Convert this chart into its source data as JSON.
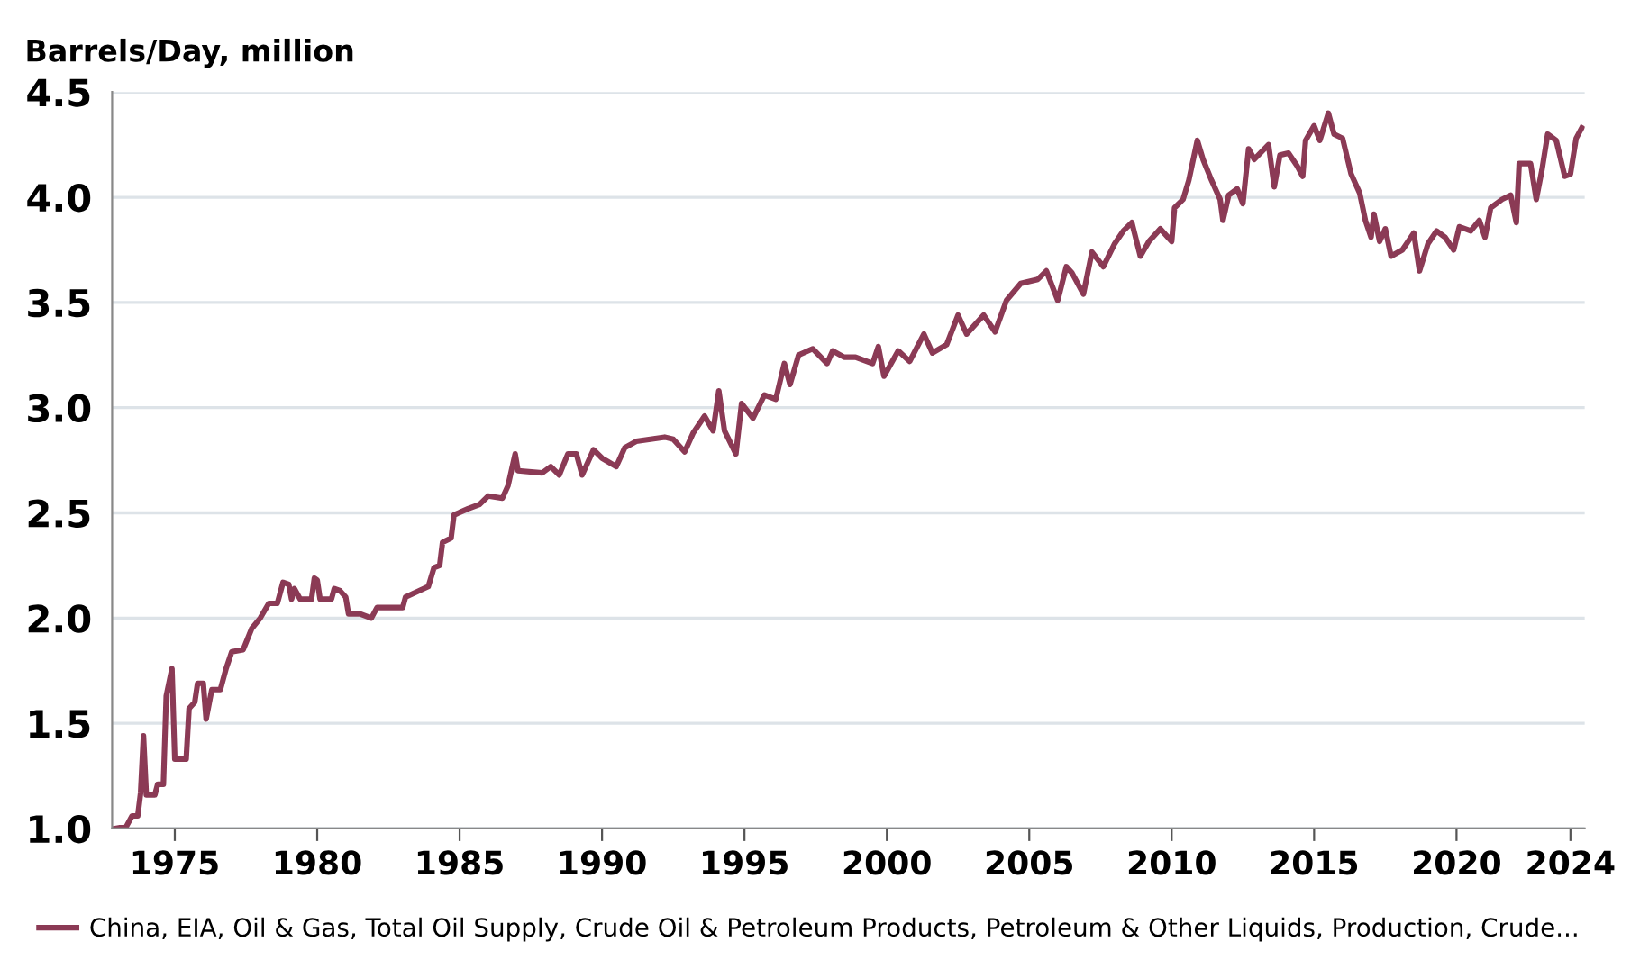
{
  "chart_data": {
    "type": "line",
    "title": "Barrels/Day, million",
    "xlim": [
      1972.8,
      2024.5
    ],
    "xticks": [
      1975,
      1980,
      1985,
      1990,
      1995,
      2000,
      2005,
      2010,
      2015,
      2020,
      2024
    ],
    "ylim": [
      1.0,
      4.5
    ],
    "yticks": [
      {
        "value": 1.0,
        "label": "1.0"
      },
      1.5,
      {
        "value": 2.0,
        "label": "2.0"
      },
      2.5,
      {
        "value": 3.0,
        "label": "3.0"
      },
      3.5,
      {
        "value": 4.0,
        "label": "4.0"
      },
      4.5
    ],
    "grid": "y",
    "legend": "bottom left",
    "marker": "none",
    "line_style": "solid",
    "series": [
      {
        "name": "China, EIA, Oil & Gas, Total Oil Supply, Crude Oil & Petroleum Products, Petroleum & Other Liquids, Production, Crude...",
        "color": "#8b3a55",
        "x": [
          1972.9,
          1973.3,
          1973.5,
          1973.7,
          1973.8,
          1973.9,
          1974.0,
          1974.3,
          1974.4,
          1974.6,
          1974.7,
          1974.9,
          1975.0,
          1975.4,
          1975.5,
          1975.7,
          1975.8,
          1976.0,
          1976.1,
          1976.3,
          1976.6,
          1976.8,
          1977.0,
          1977.4,
          1977.7,
          1978.0,
          1978.3,
          1978.6,
          1978.8,
          1979.0,
          1979.1,
          1979.2,
          1979.4,
          1979.8,
          1979.9,
          1980.0,
          1980.1,
          1980.5,
          1980.6,
          1980.8,
          1981.0,
          1981.1,
          1981.5,
          1981.9,
          1982.1,
          1983.0,
          1983.1,
          1983.9,
          1984.1,
          1984.3,
          1984.4,
          1984.7,
          1984.8,
          1985.3,
          1985.7,
          1986.0,
          1986.5,
          1986.7,
          1986.95,
          1987.05,
          1987.9,
          1988.2,
          1988.5,
          1988.8,
          1989.1,
          1989.3,
          1989.7,
          1990.0,
          1990.5,
          1990.8,
          1991.2,
          1992.2,
          1992.5,
          1992.9,
          1993.2,
          1993.6,
          1993.9,
          1994.1,
          1994.3,
          1994.7,
          1994.9,
          1995.3,
          1995.7,
          1996.1,
          1996.4,
          1996.6,
          1996.9,
          1997.4,
          1997.9,
          1998.1,
          1998.5,
          1998.9,
          1999.5,
          1999.7,
          1999.9,
          2000.4,
          2000.8,
          2001.3,
          2001.6,
          2002.1,
          2002.5,
          2002.8,
          2003.4,
          2003.8,
          2004.2,
          2004.7,
          2005.3,
          2005.6,
          2006.0,
          2006.3,
          2006.5,
          2006.9,
          2007.2,
          2007.6,
          2008.0,
          2008.3,
          2008.6,
          2008.9,
          2009.2,
          2009.6,
          2010.0,
          2010.1,
          2010.4,
          2010.6,
          2010.9,
          2011.1,
          2011.4,
          2011.7,
          2011.8,
          2012.0,
          2012.3,
          2012.5,
          2012.7,
          2012.9,
          2013.4,
          2013.6,
          2013.8,
          2014.1,
          2014.4,
          2014.6,
          2014.7,
          2015.0,
          2015.2,
          2015.5,
          2015.7,
          2016.0,
          2016.3,
          2016.6,
          2016.8,
          2017.0,
          2017.1,
          2017.3,
          2017.5,
          2017.7,
          2018.1,
          2018.5,
          2018.7,
          2019.0,
          2019.3,
          2019.6,
          2019.9,
          2020.1,
          2020.5,
          2020.8,
          2021.0,
          2021.2,
          2021.6,
          2021.9,
          2022.1,
          2022.2,
          2022.6,
          2022.8,
          2023.0,
          2023.2,
          2023.5,
          2023.8,
          2024.0,
          2024.2,
          2024.4
        ],
        "values": [
          1.0,
          1.01,
          1.06,
          1.06,
          1.17,
          1.44,
          1.16,
          1.16,
          1.21,
          1.21,
          1.63,
          1.76,
          1.33,
          1.33,
          1.57,
          1.6,
          1.69,
          1.69,
          1.52,
          1.66,
          1.66,
          1.76,
          1.84,
          1.85,
          1.95,
          2.0,
          2.07,
          2.07,
          2.17,
          2.16,
          2.09,
          2.14,
          2.09,
          2.09,
          2.19,
          2.18,
          2.09,
          2.09,
          2.14,
          2.13,
          2.1,
          2.02,
          2.02,
          2.0,
          2.05,
          2.05,
          2.1,
          2.15,
          2.24,
          2.25,
          2.36,
          2.38,
          2.49,
          2.52,
          2.54,
          2.58,
          2.57,
          2.63,
          2.78,
          2.7,
          2.69,
          2.72,
          2.68,
          2.78,
          2.78,
          2.68,
          2.8,
          2.76,
          2.72,
          2.81,
          2.84,
          2.86,
          2.85,
          2.79,
          2.88,
          2.96,
          2.89,
          3.08,
          2.89,
          2.78,
          3.02,
          2.95,
          3.06,
          3.04,
          3.21,
          3.11,
          3.25,
          3.28,
          3.21,
          3.27,
          3.24,
          3.24,
          3.21,
          3.29,
          3.15,
          3.27,
          3.22,
          3.35,
          3.26,
          3.3,
          3.44,
          3.35,
          3.44,
          3.36,
          3.51,
          3.59,
          3.61,
          3.65,
          3.51,
          3.67,
          3.64,
          3.54,
          3.74,
          3.67,
          3.78,
          3.84,
          3.88,
          3.72,
          3.79,
          3.85,
          3.79,
          3.95,
          3.99,
          4.08,
          4.27,
          4.18,
          4.08,
          3.99,
          3.89,
          4.01,
          4.04,
          3.97,
          4.23,
          4.18,
          4.25,
          4.05,
          4.2,
          4.21,
          4.15,
          4.1,
          4.27,
          4.34,
          4.27,
          4.4,
          4.3,
          4.28,
          4.11,
          4.02,
          3.89,
          3.81,
          3.92,
          3.79,
          3.85,
          3.72,
          3.75,
          3.83,
          3.65,
          3.78,
          3.84,
          3.81,
          3.75,
          3.86,
          3.84,
          3.89,
          3.81,
          3.95,
          3.99,
          4.01,
          3.88,
          4.16,
          4.16,
          3.99,
          4.13,
          4.3,
          4.27,
          4.1,
          4.11,
          4.28,
          4.33
        ]
      }
    ]
  }
}
